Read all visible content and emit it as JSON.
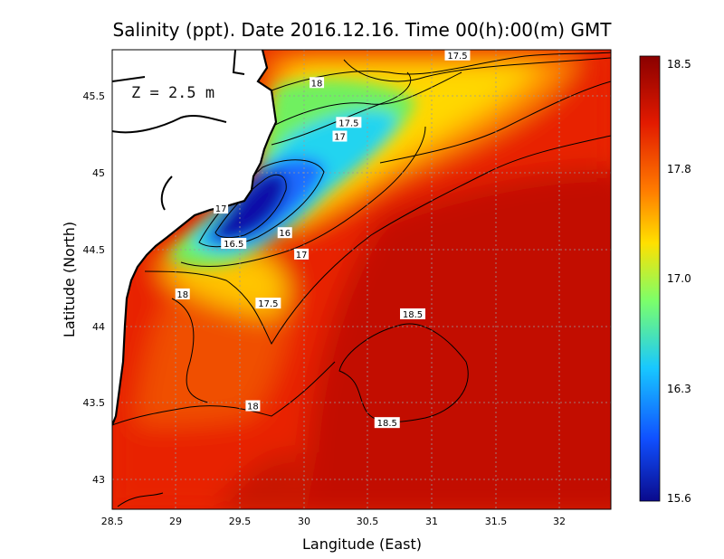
{
  "title": "Salinity (ppt). Date 2016.12.16. Time 00(h):00(m) GMT",
  "depth_label": "Z = 2.5 m",
  "x_axis": {
    "label": "Langitude (East)",
    "ticks": [
      "28.5",
      "29",
      "29.5",
      "30",
      "30.5",
      "31",
      "31.5",
      "32"
    ],
    "range": [
      28.5,
      32.4
    ]
  },
  "y_axis": {
    "label": "Latitude (North)",
    "ticks": [
      "43",
      "43.5",
      "44",
      "44.5",
      "45",
      "45.5"
    ],
    "range": [
      42.8,
      45.8
    ]
  },
  "colorbar": {
    "ticks": [
      "18.5",
      "17.8",
      "17.0",
      "16.3",
      "15.6"
    ],
    "range": [
      15.6,
      18.5
    ],
    "colors": [
      "#0a0a8c",
      "#1060ff",
      "#18c8ff",
      "#aaff50",
      "#ffd000",
      "#ff5a00",
      "#d01800",
      "#8a0000"
    ]
  },
  "contour_labels": [
    {
      "text": "17.5",
      "lon": 31.2,
      "lat": 45.76
    },
    {
      "text": "18",
      "lon": 30.1,
      "lat": 45.58
    },
    {
      "text": "17.5",
      "lon": 30.35,
      "lat": 45.32
    },
    {
      "text": "17",
      "lon": 30.28,
      "lat": 45.23
    },
    {
      "text": "17",
      "lon": 29.35,
      "lat": 44.76
    },
    {
      "text": "16",
      "lon": 29.85,
      "lat": 44.6
    },
    {
      "text": "16.5",
      "lon": 29.45,
      "lat": 44.53
    },
    {
      "text": "17",
      "lon": 29.98,
      "lat": 44.46
    },
    {
      "text": "18",
      "lon": 29.05,
      "lat": 44.2
    },
    {
      "text": "17.5",
      "lon": 29.72,
      "lat": 44.14
    },
    {
      "text": "18.5",
      "lon": 30.85,
      "lat": 44.07
    },
    {
      "text": "18",
      "lon": 29.6,
      "lat": 43.47
    },
    {
      "text": "18.5",
      "lon": 30.65,
      "lat": 43.36
    }
  ],
  "chart_data": {
    "type": "heatmap",
    "title": "Salinity (ppt). Date 2016.12.16. Time 00(h):00(m) GMT",
    "xlabel": "Langitude (East)",
    "ylabel": "Latitude (North)",
    "xlim": [
      28.5,
      32.4
    ],
    "ylim": [
      42.8,
      45.8
    ],
    "value_range": [
      15.6,
      18.5
    ],
    "contour_levels": [
      16,
      16.5,
      17,
      17.5,
      18,
      18.5
    ],
    "grid": true,
    "colorbar_position": "right"
  }
}
